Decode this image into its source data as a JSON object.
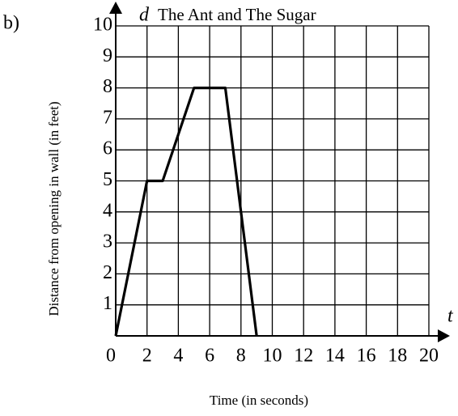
{
  "chart_data": {
    "type": "line",
    "part_label": "b)",
    "title": "The Ant and The Sugar",
    "y_symbol": "d",
    "x_symbol": "t",
    "ylabel": "Distance from opening in wall (in feet)",
    "xlabel": "Time (in seconds)",
    "x": [
      0,
      2,
      3,
      5,
      7,
      9
    ],
    "series": [
      {
        "color": "#000000",
        "values": [
          0,
          5,
          5,
          8,
          8,
          0
        ]
      }
    ],
    "xlim": [
      0,
      20
    ],
    "ylim": [
      0,
      10
    ],
    "xticks": [
      0,
      2,
      4,
      6,
      8,
      10,
      12,
      14,
      16,
      18,
      20
    ],
    "yticks": [
      1,
      2,
      3,
      4,
      5,
      6,
      7,
      8,
      9,
      10
    ],
    "grid": true
  }
}
